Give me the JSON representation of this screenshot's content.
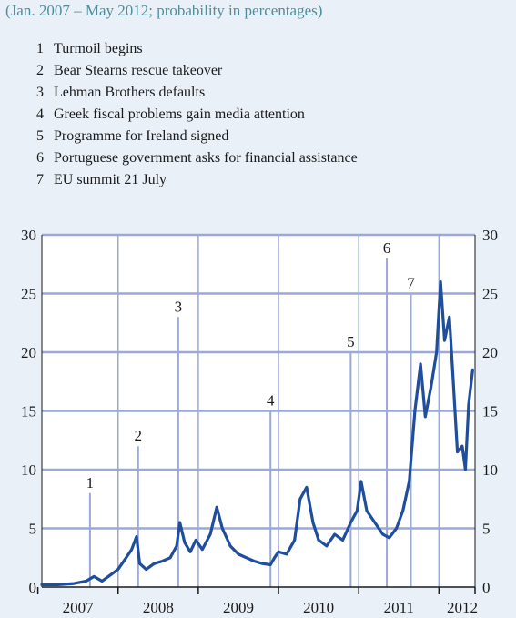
{
  "header": {
    "subtitle": "(Jan. 2007 – May 2012; probability in percentages)"
  },
  "events": [
    {
      "num": "1",
      "label": "Turmoil begins"
    },
    {
      "num": "2",
      "label": "Bear Stearns rescue takeover"
    },
    {
      "num": "3",
      "label": "Lehman Brothers defaults"
    },
    {
      "num": "4",
      "label": "Greek fiscal problems gain media attention"
    },
    {
      "num": "5",
      "label": "Programme for Ireland signed"
    },
    {
      "num": "6",
      "label": "Portuguese government asks for financial assistance"
    },
    {
      "num": "7",
      "label": "EU summit 21 July"
    }
  ],
  "chart_data": {
    "type": "line",
    "title": "",
    "xlabel": "",
    "ylabel": "",
    "xlim": [
      2007.0,
      2012.4
    ],
    "ylim": [
      0,
      30
    ],
    "yticks": [
      0,
      5,
      10,
      15,
      20,
      25,
      30
    ],
    "xtick_labels": [
      {
        "label": "2007",
        "year": 2007
      },
      {
        "label": "2008",
        "year": 2008
      },
      {
        "label": "2009",
        "year": 2009
      },
      {
        "label": "2010",
        "year": 2010
      },
      {
        "label": "2011",
        "year": 2011
      },
      {
        "label": "2012",
        "year": 2012
      }
    ],
    "grid": true,
    "line_color": "#1f4e9c",
    "grid_color": "#9aa9d6",
    "event_markers": [
      {
        "label": "1",
        "date": 2007.6,
        "top": 8
      },
      {
        "label": "2",
        "date": 2008.2,
        "top": 12
      },
      {
        "label": "3",
        "date": 2008.7,
        "top": 23
      },
      {
        "label": "4",
        "date": 2009.85,
        "top": 15
      },
      {
        "label": "5",
        "date": 2010.85,
        "top": 20
      },
      {
        "label": "6",
        "date": 2011.3,
        "top": 28
      },
      {
        "label": "7",
        "date": 2011.6,
        "top": 25
      }
    ],
    "series": [
      {
        "x": [
          2007.0,
          2007.2,
          2007.4,
          2007.55,
          2007.65,
          2007.75,
          2007.85,
          2007.95,
          2008.05,
          2008.12,
          2008.18,
          2008.22,
          2008.3,
          2008.4,
          2008.5,
          2008.6,
          2008.68,
          2008.72,
          2008.78,
          2008.85,
          2008.92,
          2009.0,
          2009.1,
          2009.18,
          2009.25,
          2009.35,
          2009.45,
          2009.55,
          2009.65,
          2009.75,
          2009.85,
          2009.9,
          2009.95,
          2010.05,
          2010.15,
          2010.22,
          2010.3,
          2010.38,
          2010.45,
          2010.55,
          2010.65,
          2010.75,
          2010.85,
          2010.93,
          2010.98,
          2011.05,
          2011.15,
          2011.25,
          2011.33,
          2011.42,
          2011.5,
          2011.58,
          2011.65,
          2011.72,
          2011.78,
          2011.85,
          2011.92,
          2011.97,
          2012.02,
          2012.08,
          2012.12,
          2012.18,
          2012.24,
          2012.28,
          2012.32,
          2012.37
        ],
        "values": [
          0.2,
          0.2,
          0.3,
          0.5,
          0.9,
          0.5,
          1.0,
          1.5,
          2.5,
          3.2,
          4.3,
          2.0,
          1.5,
          2.0,
          2.2,
          2.5,
          3.5,
          5.5,
          3.8,
          3.0,
          4.0,
          3.2,
          4.5,
          6.8,
          5.0,
          3.5,
          2.8,
          2.5,
          2.2,
          2.0,
          1.9,
          2.5,
          3.0,
          2.8,
          4.0,
          7.5,
          8.5,
          5.5,
          4.0,
          3.5,
          4.5,
          4.0,
          5.5,
          6.5,
          9.0,
          6.5,
          5.5,
          4.5,
          4.2,
          5.0,
          6.5,
          9.0,
          15.0,
          19.0,
          14.5,
          17.0,
          20.0,
          26.0,
          21.0,
          23.0,
          18.5,
          11.5,
          12.0,
          10.0,
          15.5,
          18.5
        ]
      }
    ]
  }
}
